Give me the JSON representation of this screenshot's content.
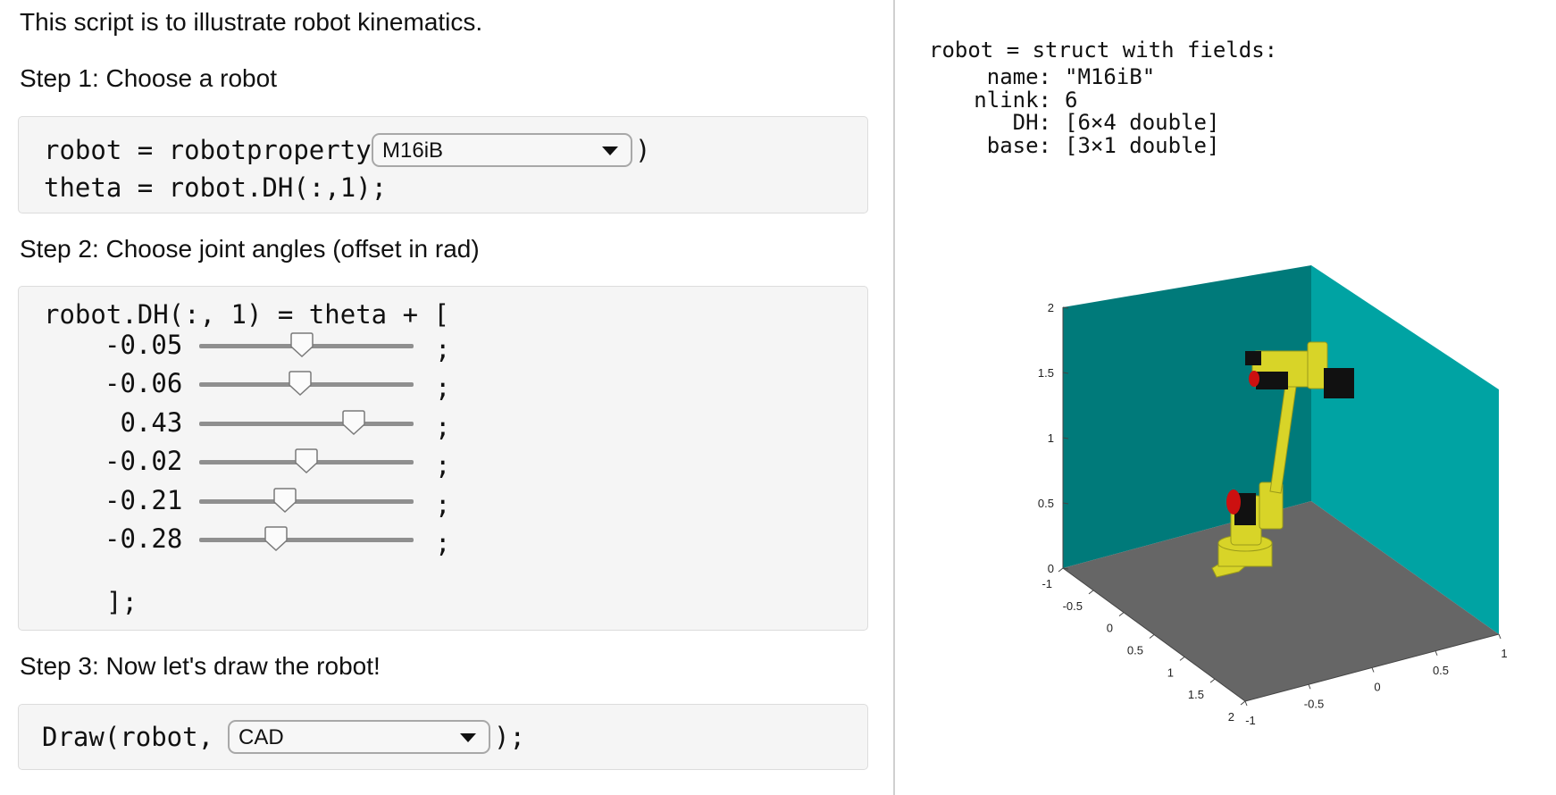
{
  "left": {
    "intro": "This script is to illustrate robot kinematics.",
    "step1": {
      "heading": "Step 1: Choose a robot",
      "line1_prefix": "robot = robotproperty(",
      "line1_suffix": ")",
      "robot_select": "M16iB",
      "line2": "theta = robot.DH(:,1);"
    },
    "step2": {
      "heading": "Step 2: Choose joint angles (offset in rad)",
      "line_open": "robot.DH(:, 1) = theta + [",
      "joints": [
        {
          "label": "-0.05",
          "fraction": 0.48
        },
        {
          "label": "-0.06",
          "fraction": 0.47
        },
        {
          "label": " 0.43",
          "fraction": 0.72
        },
        {
          "label": "-0.02",
          "fraction": 0.5
        },
        {
          "label": "-0.21",
          "fraction": 0.4
        },
        {
          "label": "-0.28",
          "fraction": 0.36
        }
      ],
      "row_suffix": ";",
      "line_close": "];"
    },
    "step3": {
      "heading": "Step 3: Now let's draw the robot!",
      "line_prefix": "Draw(robot,",
      "line_suffix": ");",
      "mode_select": "CAD"
    }
  },
  "output": {
    "var_line_prefix": "robot = ",
    "var_line_hint": "struct with fields:",
    "fields": [
      {
        "key": "name:",
        "value": "\"M16iB\""
      },
      {
        "key": "nlink:",
        "value": "6"
      },
      {
        "key": "DH:",
        "value": "[6×4 double]"
      },
      {
        "key": "base:",
        "value": "[3×1 double]"
      }
    ]
  },
  "plot": {
    "z_ticks": [
      "0",
      "0.5",
      "1",
      "1.5",
      "2"
    ],
    "x_ticks": [
      "-1",
      "-0.5",
      "0",
      "0.5",
      "1",
      "1.5",
      "2"
    ],
    "y_ticks": [
      "-1",
      "-0.5",
      "0",
      "0.5",
      "1"
    ],
    "colors": {
      "wall_back": "#007a7a",
      "wall_side": "#00a3a3",
      "floor": "#666666",
      "robot": "#d8d428",
      "robot_dark": "#9a9a1a",
      "joint_red": "#cc1010"
    }
  }
}
